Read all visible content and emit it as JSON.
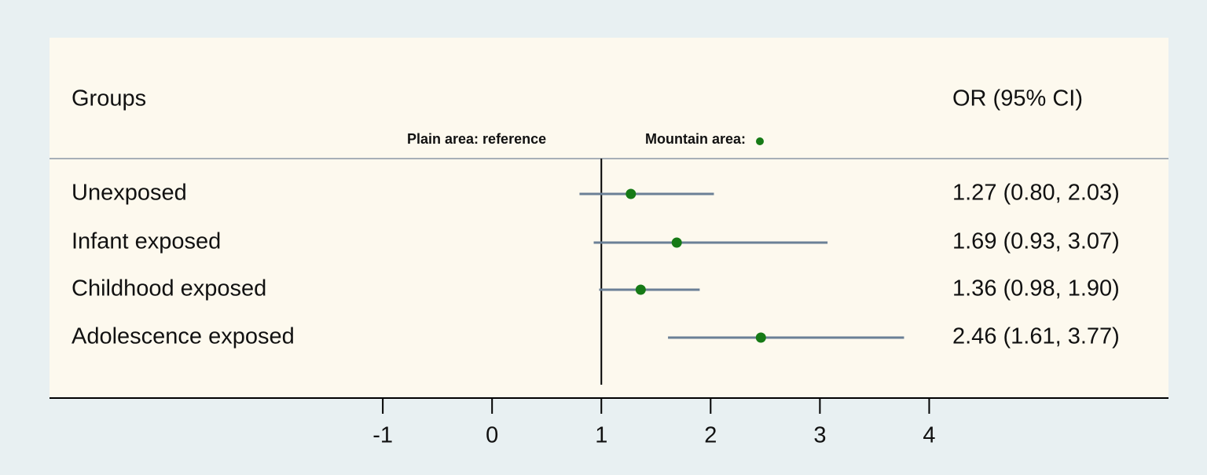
{
  "chart_data": {
    "type": "forest",
    "group_header": "Groups",
    "estimate_header": "OR (95% CI)",
    "reference_label": "Plain area: reference",
    "legend_label": "Mountain area:",
    "categories": [
      "Unexposed",
      "Infant exposed",
      "Childhood exposed",
      "Adolescence exposed"
    ],
    "values": [
      1.27,
      1.69,
      1.36,
      2.46
    ],
    "lower": [
      0.8,
      0.93,
      0.98,
      1.61
    ],
    "upper": [
      2.03,
      3.07,
      1.9,
      3.77
    ],
    "value_labels": [
      "1.27 (0.80, 2.03)",
      "1.69 (0.93, 3.07)",
      "1.36 (0.98, 1.90)",
      "2.46 (1.61, 3.77)"
    ],
    "point_color": "#167a16",
    "ci_color": "#6b8096",
    "reference_line": 1,
    "xlim": [
      -4.05,
      6.19
    ],
    "xticks": [
      -1,
      0,
      1,
      2,
      3,
      4
    ]
  }
}
